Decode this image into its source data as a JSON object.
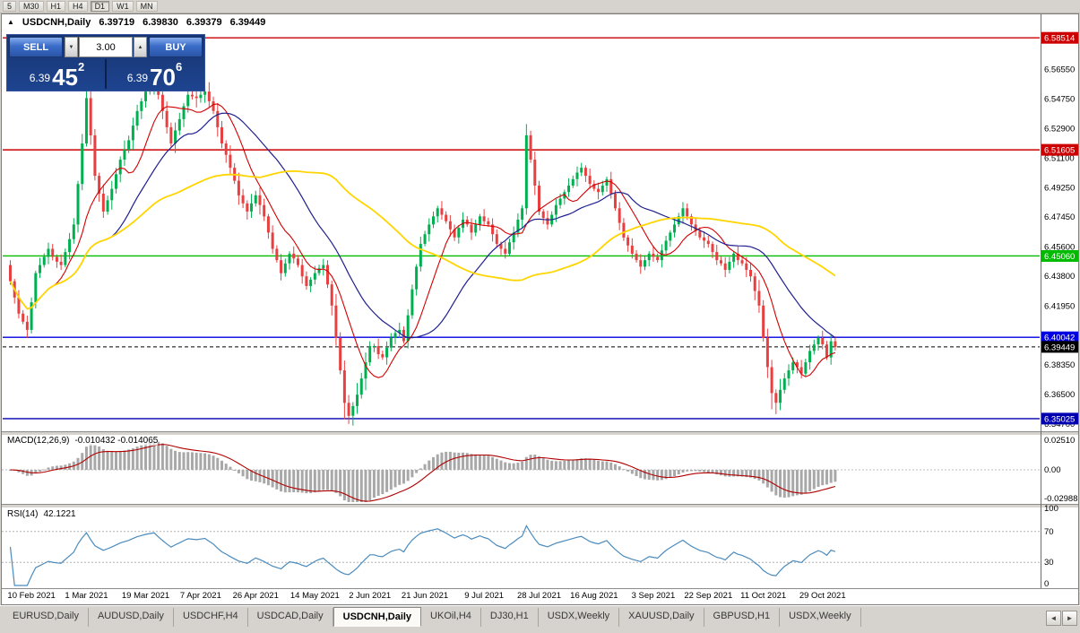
{
  "toolbar": {
    "timeframes": [
      "5",
      "M30",
      "H1",
      "H4",
      "D1",
      "W1",
      "MN"
    ],
    "active": "D1"
  },
  "chart_header": {
    "collapse_icon": "▲",
    "symbol": "USDCNH,Daily",
    "open": "6.39719",
    "high": "6.39830",
    "low": "6.39379",
    "close": "6.39449"
  },
  "trade_panel": {
    "sell_label": "SELL",
    "buy_label": "BUY",
    "volume": "3.00",
    "spin_down_icon": "▼",
    "spin_up_icon": "▲",
    "sell": {
      "prefix": "6.39",
      "big": "45",
      "sup": "2"
    },
    "buy": {
      "prefix": "6.39",
      "big": "70",
      "sup": "6"
    }
  },
  "price_axis": {
    "ticks": [
      "6.56550",
      "6.54750",
      "6.52900",
      "6.51100",
      "6.49250",
      "6.47450",
      "6.45600",
      "6.43800",
      "6.41950",
      "6.38350",
      "6.36500",
      "6.34700"
    ]
  },
  "levels": [
    {
      "price": 6.58514,
      "label": "6.58514",
      "color": "#cc0000",
      "style": "solid"
    },
    {
      "price": 6.51605,
      "label": "6.51605",
      "color": "#cc0000",
      "style": "solid"
    },
    {
      "price": 6.4506,
      "label": "6.45060",
      "color": "#00bb00",
      "style": "solid"
    },
    {
      "price": 6.40042,
      "label": "6.40042",
      "color": "#0000e0",
      "style": "solid"
    },
    {
      "price": 6.39449,
      "label": "6.39449",
      "color": "#000000",
      "style": "dashed"
    },
    {
      "price": 6.35025,
      "label": "6.35025",
      "color": "#0000b0",
      "style": "solid"
    }
  ],
  "indicators": {
    "macd": {
      "label": "MACD(12,26,9)",
      "values": "-0.010432 -0.014065",
      "axis": [
        "0.02510",
        "0.00",
        "-0.02988"
      ],
      "fast": 12,
      "slow": 26,
      "signal": 9,
      "histogram_color": "#a8a8a8",
      "signal_color": "#b00000"
    },
    "rsi": {
      "label": "RSI(14)",
      "value": "42.1221",
      "axis": [
        100,
        70,
        30,
        0
      ],
      "period": 14,
      "levels": [
        70,
        30
      ],
      "line_color": "#4a8bbe"
    }
  },
  "x_axis": {
    "dates": [
      "10 Feb 2021",
      "1 Mar 2021",
      "19 Mar 2021",
      "7 Apr 2021",
      "26 Apr 2021",
      "14 May 2021",
      "2 Jun 2021",
      "21 Jun 2021",
      "9 Jul 2021",
      "28 Jul 2021",
      "16 Aug 2021",
      "3 Sep 2021",
      "22 Sep 2021",
      "11 Oct 2021",
      "29 Oct 2021"
    ],
    "bar_indices": [
      5,
      18,
      32,
      45,
      58,
      72,
      85,
      98,
      112,
      125,
      138,
      152,
      165,
      178,
      192
    ]
  },
  "chart_data": {
    "type": "candlestick",
    "symbol": "USDCNH",
    "timeframe": "Daily",
    "price_range": [
      6.343,
      6.593
    ],
    "first_open": 6.445,
    "closes": [
      6.435,
      6.425,
      6.415,
      6.41,
      6.405,
      6.422,
      6.44,
      6.445,
      6.45,
      6.455,
      6.45,
      6.447,
      6.445,
      6.453,
      6.461,
      6.47,
      6.495,
      6.52,
      6.548,
      6.525,
      6.5,
      6.489,
      6.478,
      6.485,
      6.492,
      6.501,
      6.51,
      6.516,
      6.522,
      6.531,
      6.54,
      6.546,
      6.552,
      6.556,
      6.56,
      6.55,
      6.54,
      6.53,
      6.52,
      6.528,
      6.535,
      6.543,
      6.55,
      6.549,
      6.548,
      6.55,
      6.552,
      6.546,
      6.54,
      6.53,
      6.52,
      6.513,
      6.505,
      6.497,
      6.488,
      6.483,
      6.478,
      6.483,
      6.488,
      6.482,
      6.475,
      6.465,
      6.455,
      6.448,
      6.44,
      6.446,
      6.452,
      6.449,
      6.445,
      6.438,
      6.432,
      6.436,
      6.44,
      6.443,
      6.445,
      6.433,
      6.42,
      6.4,
      6.38,
      6.36,
      6.352,
      6.358,
      6.365,
      6.375,
      6.385,
      6.395,
      6.395,
      6.39,
      6.388,
      6.394,
      6.4,
      6.403,
      6.405,
      6.398,
      6.414,
      6.43,
      6.444,
      6.458,
      6.464,
      6.47,
      6.475,
      6.48,
      6.476,
      6.472,
      6.467,
      6.462,
      6.468,
      6.473,
      6.47,
      6.465,
      6.47,
      6.475,
      6.472,
      6.47,
      6.464,
      6.458,
      6.455,
      6.452,
      6.459,
      6.465,
      6.473,
      6.48,
      6.525,
      6.51,
      6.494,
      6.478,
      6.474,
      6.47,
      6.476,
      6.482,
      6.486,
      6.49,
      6.494,
      6.498,
      6.502,
      6.505,
      6.5,
      6.495,
      6.492,
      6.49,
      6.494,
      6.498,
      6.489,
      6.48,
      6.471,
      6.462,
      6.457,
      6.452,
      6.448,
      6.444,
      6.448,
      6.452,
      6.45,
      6.448,
      6.454,
      6.46,
      6.465,
      6.47,
      6.475,
      6.48,
      6.475,
      6.47,
      6.466,
      6.462,
      6.46,
      6.458,
      6.453,
      6.448,
      6.446,
      6.442,
      6.447,
      6.452,
      6.448,
      6.446,
      6.442,
      6.438,
      6.429,
      6.42,
      6.4,
      6.382,
      6.366,
      6.36,
      6.368,
      6.375,
      6.38,
      6.385,
      6.382,
      6.378,
      6.385,
      6.392,
      6.396,
      6.4,
      6.396,
      6.388,
      6.398,
      6.3945
    ],
    "wick_pattern": [
      0.003,
      0.0015,
      0.0045,
      0.0022,
      0.0038
    ],
    "volatile_ranges": [
      [
        15,
        60,
        1.3
      ],
      [
        76,
        84,
        1.6
      ],
      [
        120,
        124,
        1.3
      ],
      [
        175,
        183,
        1.5
      ]
    ],
    "special_wicks": {
      "4": {
        "l": 6.4
      },
      "18": {
        "h": 6.556
      },
      "33": {
        "h": 6.575
      },
      "34": {
        "h": 6.569
      },
      "79": {
        "l": 6.35
      },
      "80": {
        "l": 6.347
      },
      "122": {
        "h": 6.532
      },
      "180": {
        "l": 6.356
      },
      "181": {
        "l": 6.353
      }
    },
    "up_color": "#00b050",
    "down_color": "#e84040",
    "ma": [
      {
        "period": 10,
        "color": "#d40000",
        "width": 1.1
      },
      {
        "period": 25,
        "color": "#202090",
        "width": 1.2
      },
      {
        "period": 60,
        "color": "#ffd500",
        "width": 1.8
      }
    ]
  },
  "tabs": {
    "items": [
      "EURUSD,Daily",
      "AUDUSD,Daily",
      "USDCHF,H4",
      "USDCAD,Daily",
      "USDCNH,Daily",
      "UKOil,H4",
      "DJ30,H1",
      "USDX,Weekly",
      "XAUUSD,Daily",
      "GBPUSD,H1",
      "USDX,Weekly"
    ],
    "active_index": 4,
    "nav": [
      "◄",
      "►"
    ]
  }
}
